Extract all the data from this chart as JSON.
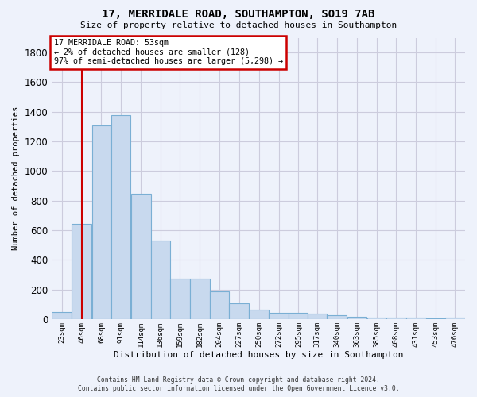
{
  "title": "17, MERRIDALE ROAD, SOUTHAMPTON, SO19 7AB",
  "subtitle": "Size of property relative to detached houses in Southampton",
  "xlabel": "Distribution of detached houses by size in Southampton",
  "ylabel": "Number of detached properties",
  "bar_color": "#c8d9ee",
  "bar_edge_color": "#7aafd4",
  "grid_color": "#ccccdd",
  "background_color": "#eef2fb",
  "vline_color": "#cc0000",
  "vline_x": 46.0,
  "annotation_text": "17 MERRIDALE ROAD: 53sqm\n← 2% of detached houses are smaller (128)\n97% of semi-detached houses are larger (5,298) →",
  "annotation_box_edgecolor": "#cc0000",
  "footer_line1": "Contains HM Land Registry data © Crown copyright and database right 2024.",
  "footer_line2": "Contains public sector information licensed under the Open Government Licence v3.0.",
  "categories": [
    "23sqm",
    "46sqm",
    "68sqm",
    "91sqm",
    "114sqm",
    "136sqm",
    "159sqm",
    "182sqm",
    "204sqm",
    "227sqm",
    "250sqm",
    "272sqm",
    "295sqm",
    "317sqm",
    "340sqm",
    "363sqm",
    "385sqm",
    "408sqm",
    "431sqm",
    "453sqm",
    "476sqm"
  ],
  "values": [
    48,
    642,
    1310,
    1375,
    845,
    530,
    275,
    275,
    185,
    105,
    65,
    40,
    40,
    35,
    28,
    15,
    10,
    10,
    8,
    5,
    12
  ],
  "bin_edges": [
    11.5,
    34.5,
    57.5,
    79.5,
    102.5,
    125.5,
    147.5,
    170.5,
    193.5,
    215.5,
    238.5,
    261.5,
    284.5,
    306.5,
    328.5,
    351.5,
    374.5,
    396.5,
    419.5,
    442.5,
    464.5,
    487.5
  ],
  "ylim": [
    0,
    1900
  ],
  "yticks": [
    0,
    200,
    400,
    600,
    800,
    1000,
    1200,
    1400,
    1600,
    1800
  ]
}
